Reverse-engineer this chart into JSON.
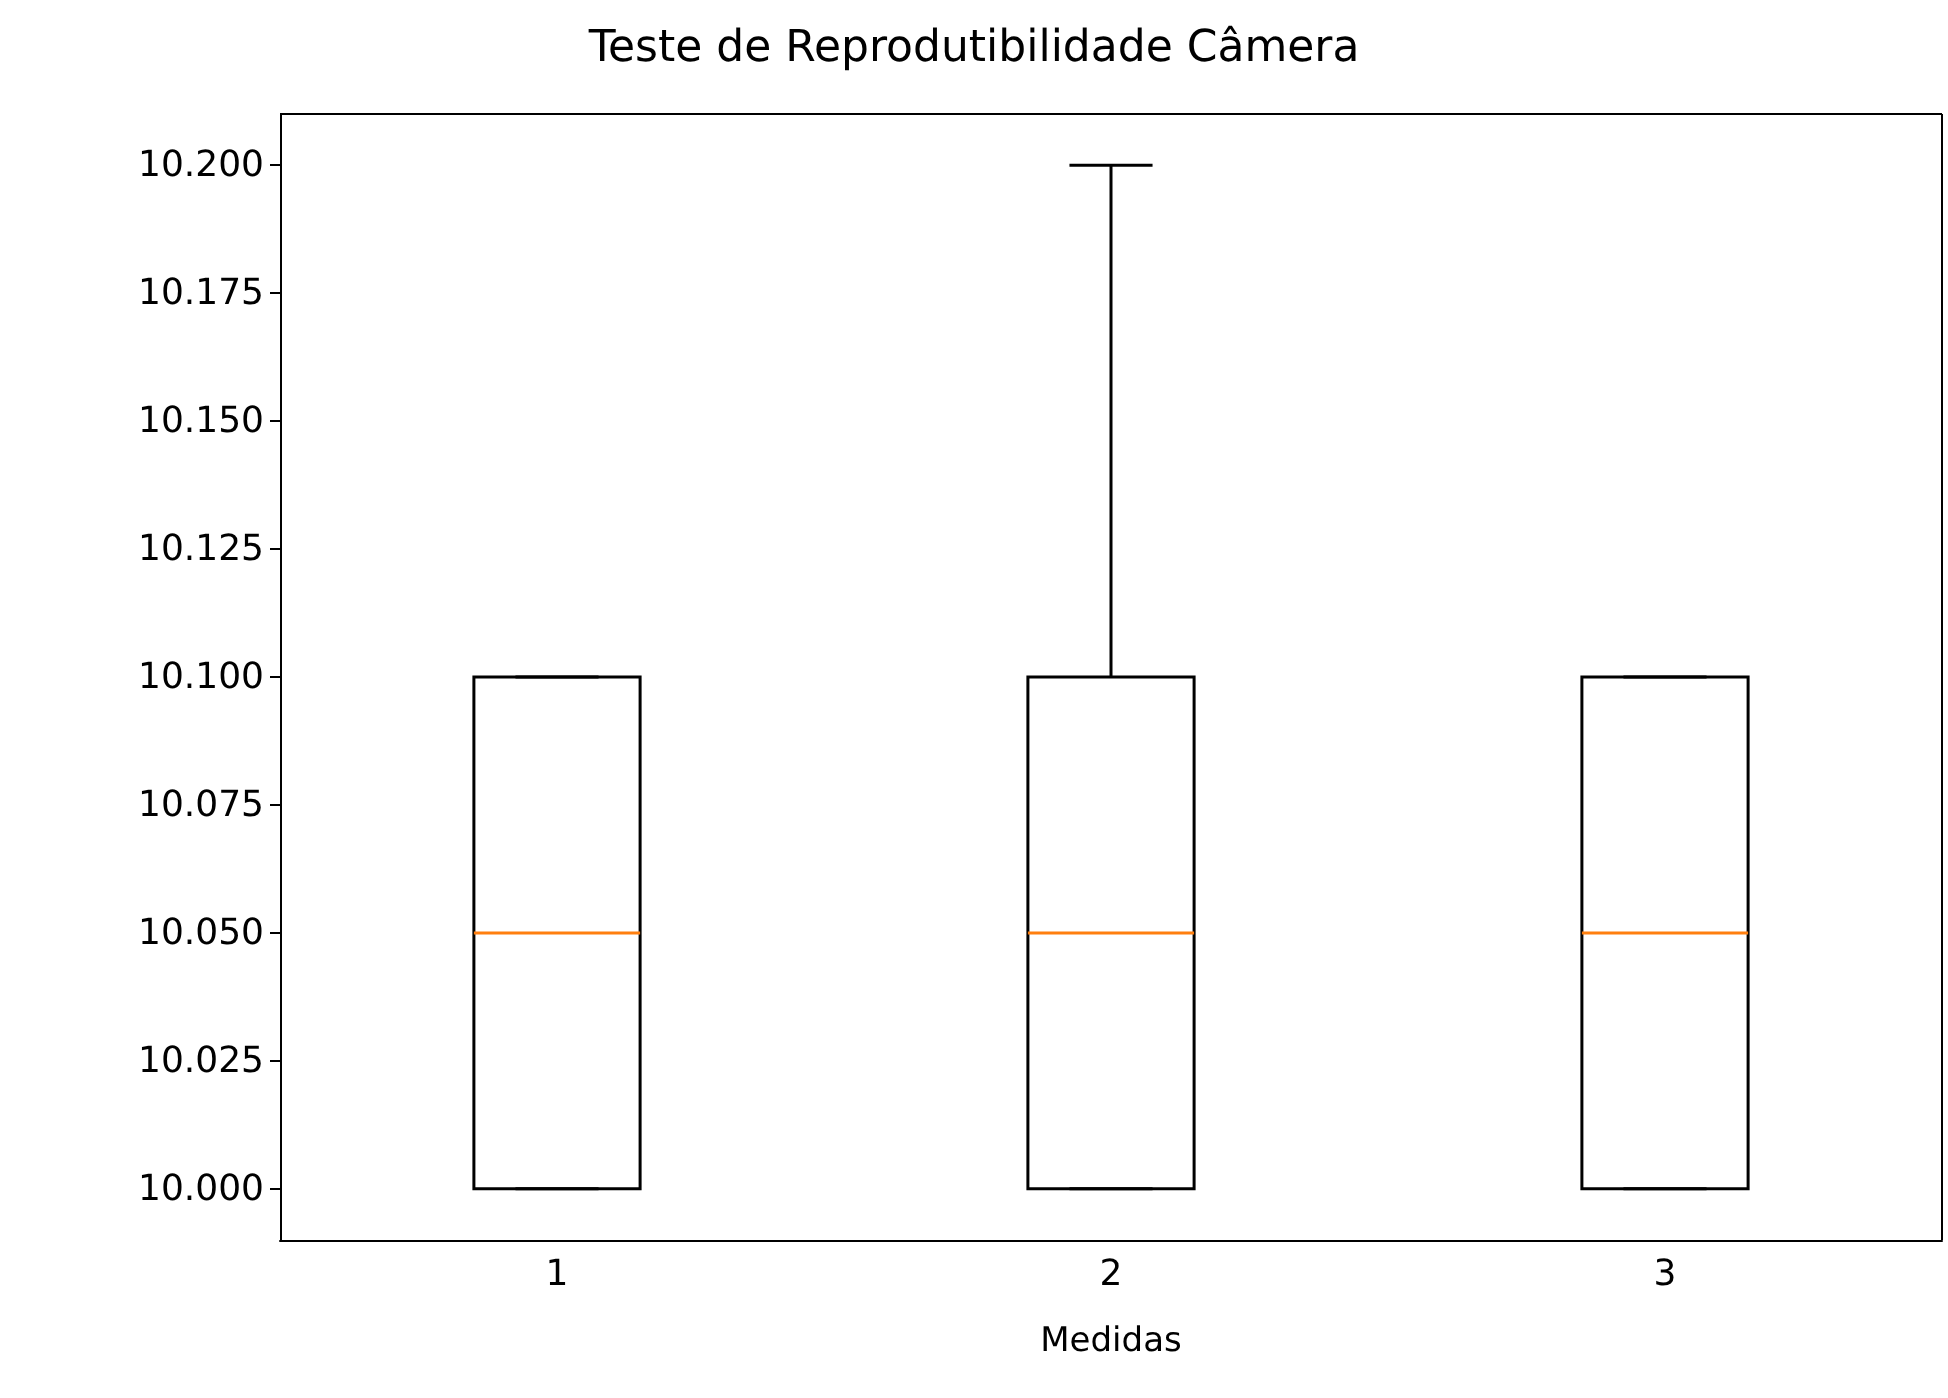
{
  "chart_data": {
    "type": "box",
    "title": "Teste de Reprodutibilidade Câmera",
    "xlabel": "Medidas",
    "categories": [
      "1",
      "2",
      "3"
    ],
    "color": "#000000",
    "boxes": [
      {
        "low": 10.0,
        "q1": 10.0,
        "median": 10.05,
        "q3": 10.1,
        "high": 10.1
      },
      {
        "low": 10.0,
        "q1": 10.0,
        "median": 10.05,
        "q3": 10.1,
        "high": 10.2
      },
      {
        "low": 10.0,
        "q1": 10.0,
        "median": 10.05,
        "q3": 10.1,
        "high": 10.1
      }
    ],
    "ylim": [
      9.99,
      10.21
    ],
    "yticks": [
      {
        "value": 10.0,
        "label": "10.000"
      },
      {
        "value": 10.025,
        "label": "10.025"
      },
      {
        "value": 10.05,
        "label": "10.050"
      },
      {
        "value": 10.075,
        "label": "10.075"
      },
      {
        "value": 10.1,
        "label": "10.100"
      },
      {
        "value": 10.125,
        "label": "10.125"
      },
      {
        "value": 10.15,
        "label": "10.150"
      },
      {
        "value": 10.175,
        "label": "10.175"
      },
      {
        "value": 10.2,
        "label": "10.200"
      }
    ],
    "grid": false
  }
}
